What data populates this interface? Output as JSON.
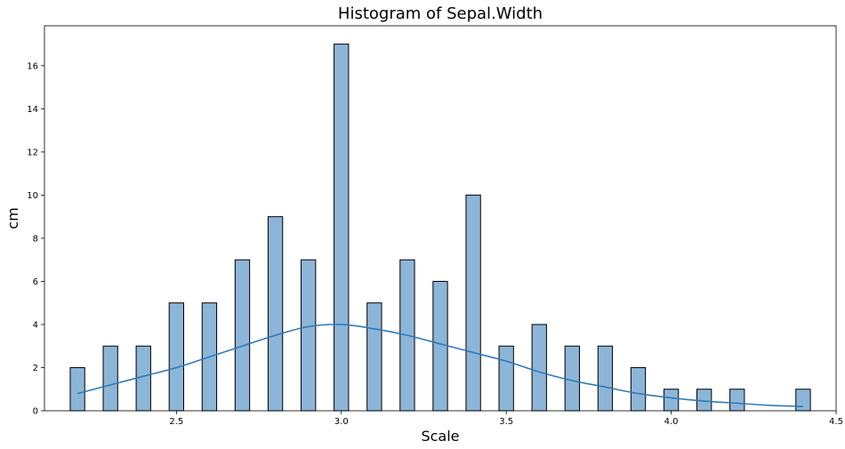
{
  "chart_data": {
    "type": "bar",
    "title": "Histogram of Sepal.Width",
    "xlabel": "Scale",
    "ylabel": "cm",
    "xlim": [
      2.1,
      4.5
    ],
    "ylim": [
      0,
      17.85
    ],
    "x_ticks": [
      2.5,
      3.0,
      3.5,
      4.0,
      4.5
    ],
    "x_tick_labels": [
      "2.5",
      "3.0",
      "3.5",
      "4.0",
      "4.5"
    ],
    "y_ticks": [
      0,
      2,
      4,
      6,
      8,
      10,
      12,
      14,
      16
    ],
    "y_tick_labels": [
      "0",
      "2",
      "4",
      "6",
      "8",
      "10",
      "12",
      "14",
      "16"
    ],
    "bar_width": 0.044,
    "bars": [
      {
        "x": 2.2,
        "value": 2
      },
      {
        "x": 2.3,
        "value": 3
      },
      {
        "x": 2.4,
        "value": 3
      },
      {
        "x": 2.5,
        "value": 5
      },
      {
        "x": 2.6,
        "value": 5
      },
      {
        "x": 2.7,
        "value": 7
      },
      {
        "x": 2.8,
        "value": 9
      },
      {
        "x": 2.9,
        "value": 7
      },
      {
        "x": 3.0,
        "value": 17
      },
      {
        "x": 3.1,
        "value": 5
      },
      {
        "x": 3.2,
        "value": 7
      },
      {
        "x": 3.3,
        "value": 6
      },
      {
        "x": 3.4,
        "value": 10
      },
      {
        "x": 3.5,
        "value": 3
      },
      {
        "x": 3.6,
        "value": 4
      },
      {
        "x": 3.7,
        "value": 3
      },
      {
        "x": 3.8,
        "value": 3
      },
      {
        "x": 3.9,
        "value": 2
      },
      {
        "x": 4.0,
        "value": 1
      },
      {
        "x": 4.1,
        "value": 1
      },
      {
        "x": 4.2,
        "value": 1
      },
      {
        "x": 4.4,
        "value": 1
      }
    ],
    "kde_curve": {
      "x": [
        2.2,
        2.3,
        2.4,
        2.5,
        2.6,
        2.7,
        2.8,
        2.9,
        3.0,
        3.1,
        3.2,
        3.3,
        3.4,
        3.5,
        3.6,
        3.7,
        3.8,
        3.9,
        4.0,
        4.1,
        4.2,
        4.3,
        4.4
      ],
      "y": [
        0.8,
        1.2,
        1.6,
        2.0,
        2.5,
        3.0,
        3.5,
        3.9,
        4.0,
        3.8,
        3.5,
        3.1,
        2.7,
        2.3,
        1.8,
        1.4,
        1.1,
        0.8,
        0.6,
        0.45,
        0.35,
        0.25,
        0.2
      ]
    },
    "colors": {
      "bar_fill": "#8db5d8",
      "bar_edge": "#000000",
      "kde": "#2f7ab8"
    },
    "grid": false,
    "legend": "none"
  }
}
